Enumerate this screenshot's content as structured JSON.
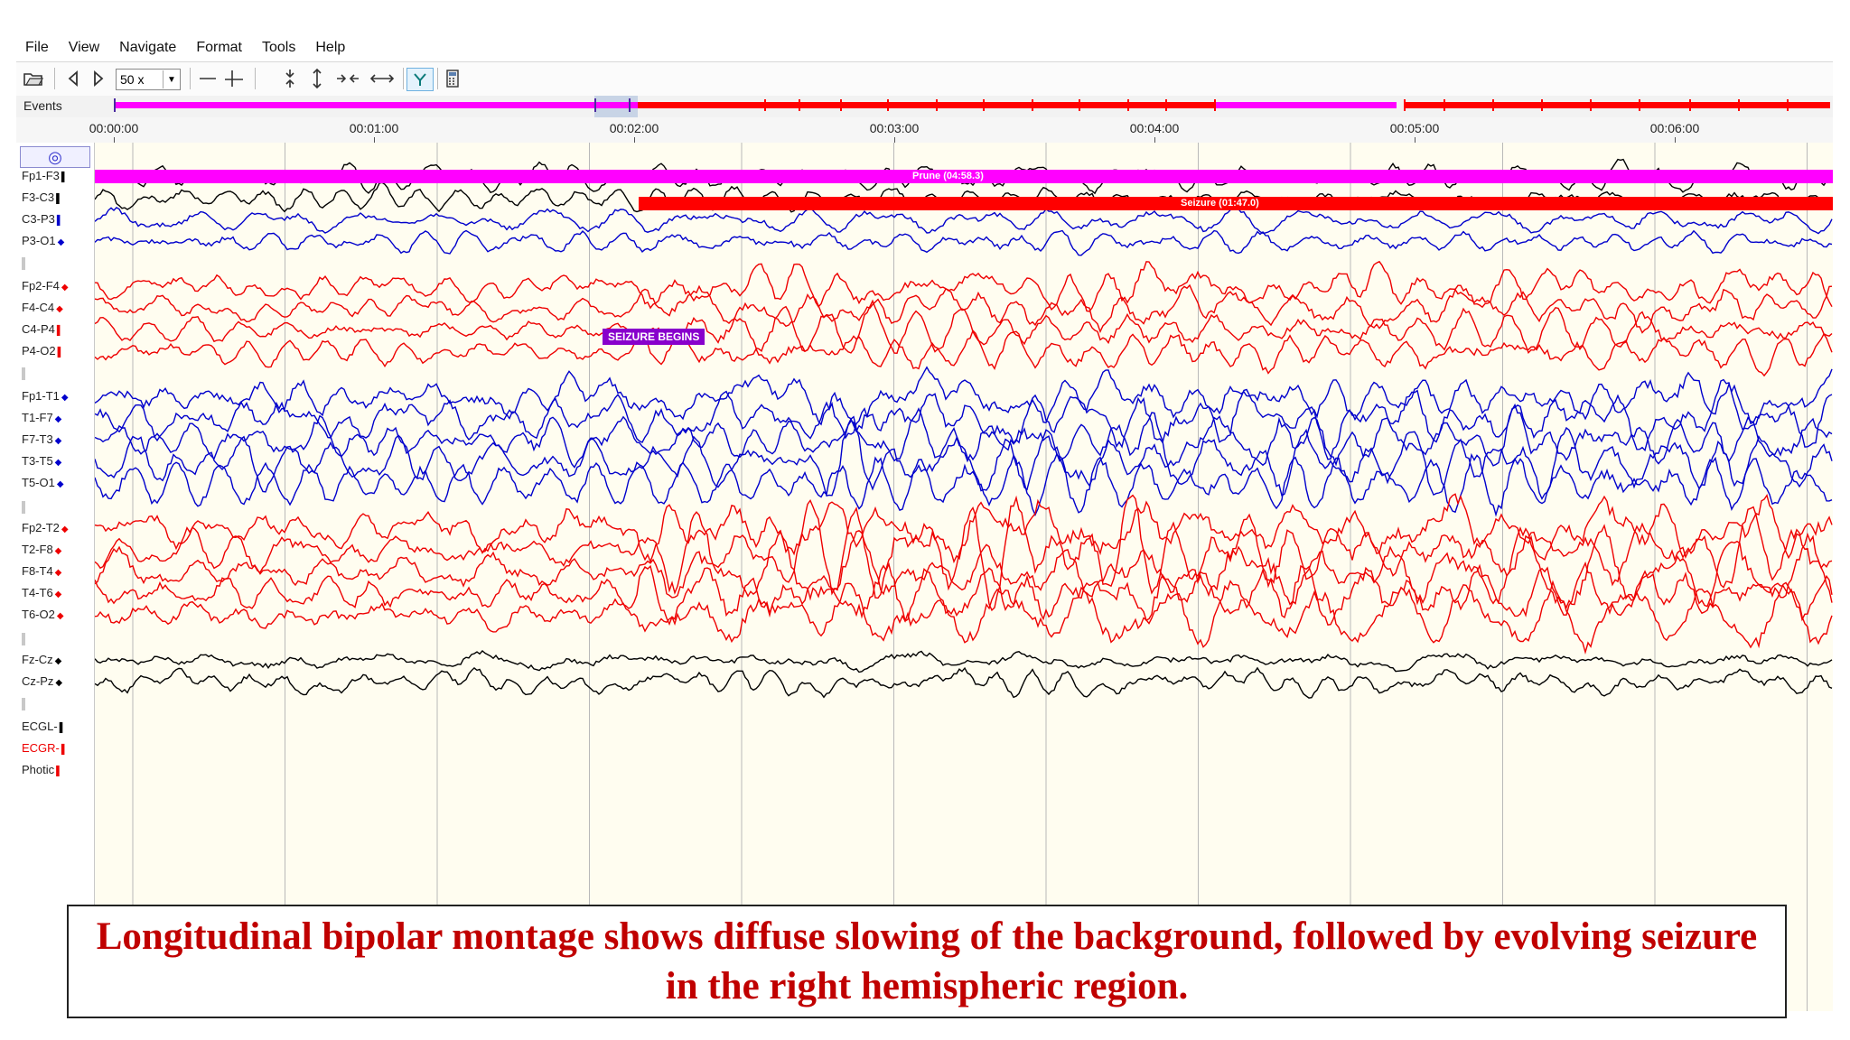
{
  "menu": [
    "File",
    "View",
    "Navigate",
    "Format",
    "Tools",
    "Help"
  ],
  "toolbar": {
    "zoom_value": "50 x"
  },
  "events_label": "Events",
  "time_ticks": [
    "00:00:00",
    "00:01:00",
    "00:02:00",
    "00:03:00",
    "00:04:00",
    "00:05:00",
    "00:06:00"
  ],
  "annotations": {
    "prune": "Prune (04:58.3)",
    "seizure": "Seizure (01:47.0)",
    "seizure_begins": "SEIZURE BEGINS"
  },
  "channels": [
    {
      "label": "Fp1-F3",
      "color": "#000000",
      "marker": "bar"
    },
    {
      "label": "F3-C3",
      "color": "#000000",
      "marker": "bar"
    },
    {
      "label": "C3-P3",
      "color": "#0000cc",
      "marker": "bar"
    },
    {
      "label": "P3-O1",
      "color": "#0000cc",
      "marker": "dot"
    },
    {
      "label": "Fp2-F4",
      "color": "#ee0000",
      "marker": "dot"
    },
    {
      "label": "F4-C4",
      "color": "#ee0000",
      "marker": "dot"
    },
    {
      "label": "C4-P4",
      "color": "#ee0000",
      "marker": "bar"
    },
    {
      "label": "P4-O2",
      "color": "#ee0000",
      "marker": "bar"
    },
    {
      "label": "Fp1-T1",
      "color": "#0000cc",
      "marker": "dot"
    },
    {
      "label": "T1-F7",
      "color": "#0000cc",
      "marker": "dot"
    },
    {
      "label": "F7-T3",
      "color": "#0000cc",
      "marker": "dot"
    },
    {
      "label": "T3-T5",
      "color": "#0000cc",
      "marker": "dot"
    },
    {
      "label": "T5-O1",
      "color": "#0000cc",
      "marker": "dot"
    },
    {
      "label": "Fp2-T2",
      "color": "#ee0000",
      "marker": "dot"
    },
    {
      "label": "T2-F8",
      "color": "#ee0000",
      "marker": "dot"
    },
    {
      "label": "F8-T4",
      "color": "#ee0000",
      "marker": "dot"
    },
    {
      "label": "T4-T6",
      "color": "#ee0000",
      "marker": "dot"
    },
    {
      "label": "T6-O2",
      "color": "#ee0000",
      "marker": "dot"
    },
    {
      "label": "Fz-Cz",
      "color": "#000000",
      "marker": "dot"
    },
    {
      "label": "Cz-Pz",
      "color": "#000000",
      "marker": "dot"
    },
    {
      "label": "ECGL-",
      "color": "#000000",
      "marker": "bar"
    },
    {
      "label": "ECGR-",
      "color": "#ee0000",
      "marker": "bar"
    },
    {
      "label": "Photic",
      "color": "#ee0000",
      "marker": "bar"
    }
  ],
  "colors": {
    "prune_bar": "#ff00ff",
    "seizure_bar": "#ff0000",
    "seizure_begins_tag": "#8800cc"
  },
  "caption": "Longitudinal bipolar montage shows diffuse slowing of the background, followed by evolving seizure in the right hemispheric region."
}
